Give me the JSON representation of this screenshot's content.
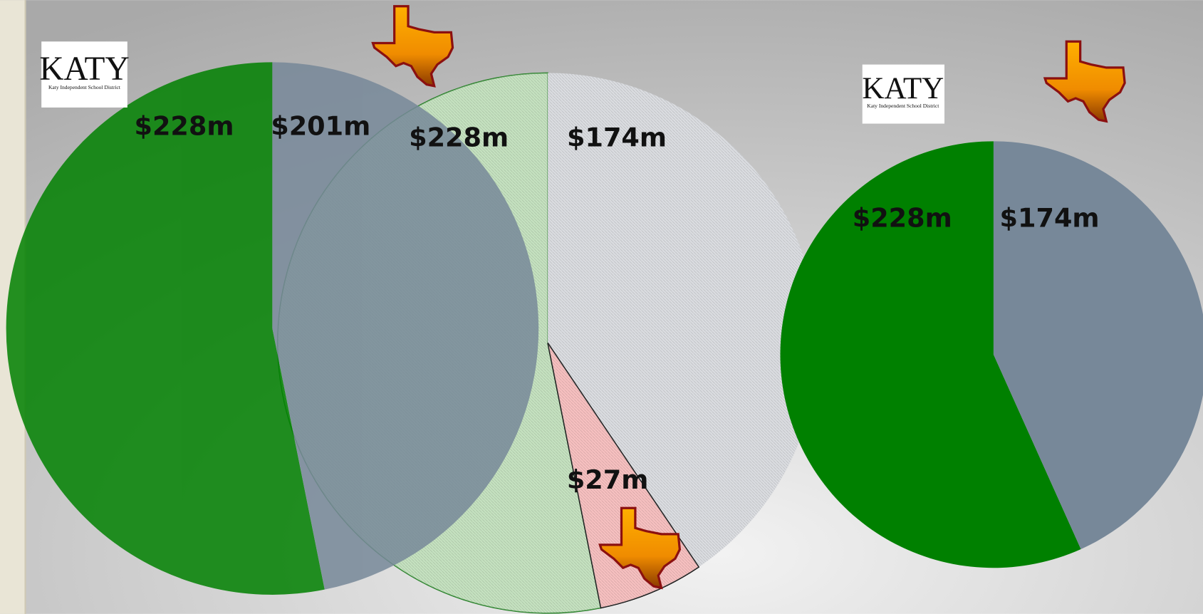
{
  "chart_data": [
    {
      "type": "pie",
      "values": [
        228,
        201
      ],
      "value_labels": [
        "$228m",
        "$201m"
      ],
      "colors": [
        "#008000",
        "#778899"
      ]
    },
    {
      "type": "pie",
      "values": [
        228,
        174,
        27
      ],
      "value_labels": [
        "$228m",
        "$174m",
        "$27m"
      ],
      "colors": [
        "#a8d4a0",
        "#c9ccd2",
        "#f4a0a0"
      ],
      "pattern": "hatch"
    },
    {
      "type": "pie",
      "values": [
        228,
        174
      ],
      "value_labels": [
        "$228m",
        "$174m"
      ],
      "colors": [
        "#008000",
        "#778899"
      ]
    }
  ],
  "logos": [
    {
      "text": "KATY",
      "subtitle": "Katy Independent School District"
    },
    {
      "text": "KATY",
      "subtitle": "Katy Independent School District"
    }
  ]
}
